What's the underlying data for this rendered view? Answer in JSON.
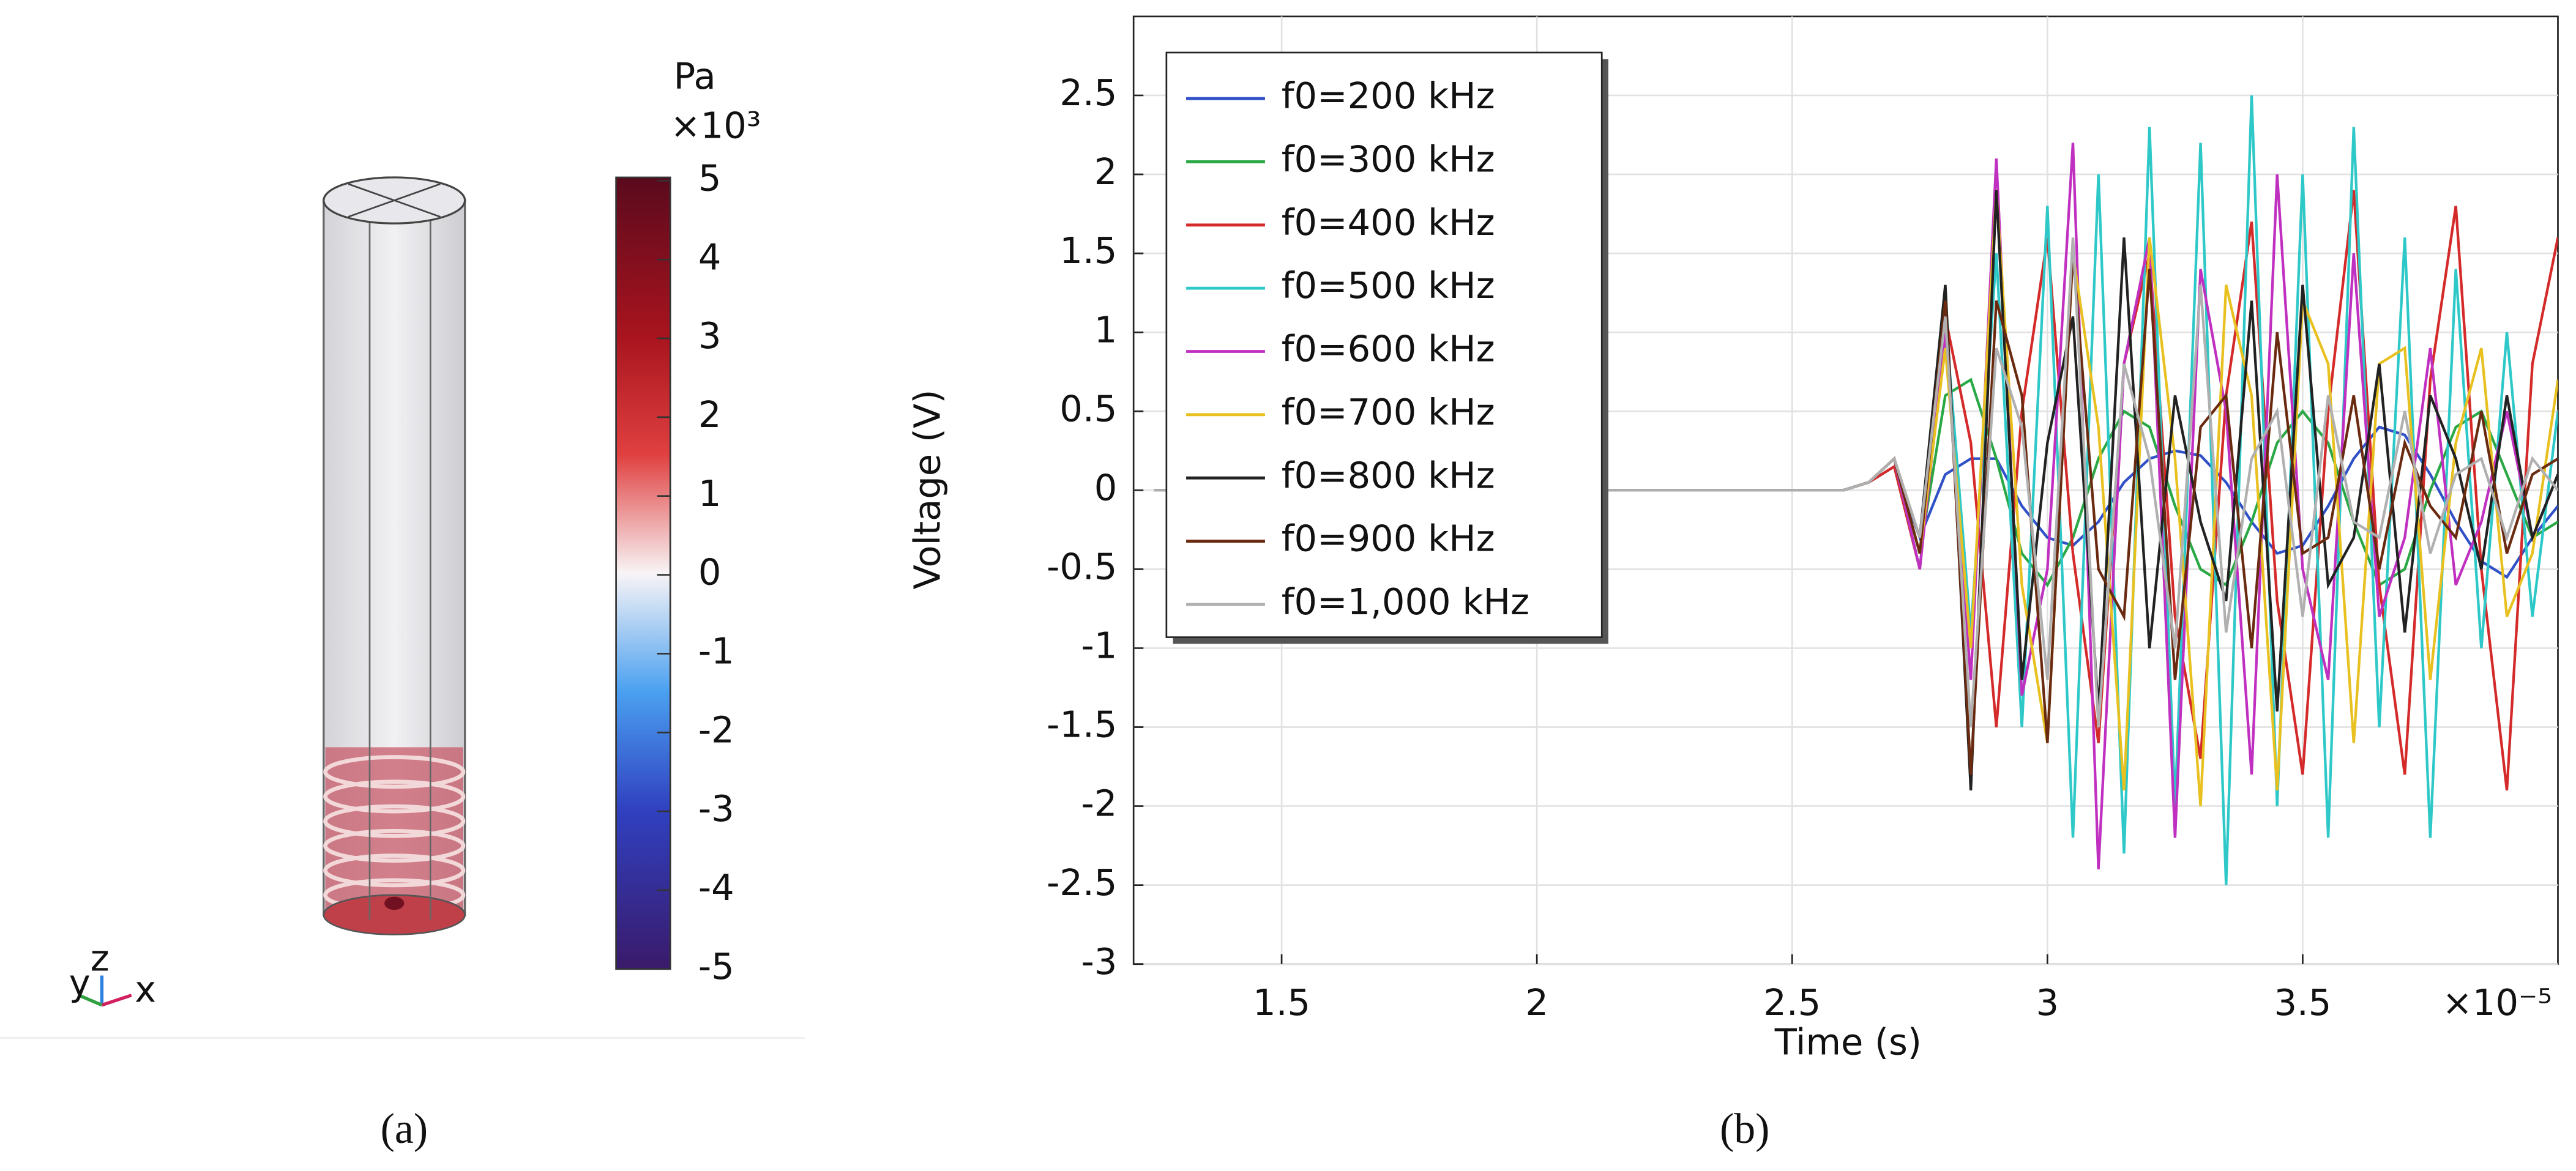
{
  "chart_data": {
    "type": "line",
    "xlabel": "Time (s)",
    "ylabel": "Voltage (V)",
    "x_multiplier": "×10⁻⁵",
    "x": [
      1.25,
      1.5,
      2,
      2.5,
      2.6,
      2.65,
      2.7,
      2.75,
      2.8,
      2.85,
      2.9,
      2.95,
      3,
      3.05,
      3.1,
      3.15,
      3.2,
      3.25,
      3.3,
      3.35,
      3.4,
      3.45,
      3.5,
      3.55,
      3.6,
      3.65,
      3.7,
      3.75,
      3.8,
      3.85,
      3.9,
      3.95,
      4.0
    ],
    "series": [
      {
        "name": "f0=200 kHz",
        "color": "#3050c8",
        "values": [
          0,
          0,
          0,
          0,
          0,
          0.05,
          0.15,
          -0.3,
          0.1,
          0.2,
          0.2,
          -0.1,
          -0.3,
          -0.35,
          -0.2,
          0.05,
          0.2,
          0.25,
          0.22,
          0.05,
          -0.2,
          -0.4,
          -0.35,
          -0.1,
          0.2,
          0.4,
          0.35,
          0.1,
          -0.2,
          -0.45,
          -0.55,
          -0.3,
          -0.1
        ]
      },
      {
        "name": "f0=300 kHz",
        "color": "#2aa845",
        "values": [
          0,
          0,
          0,
          0,
          0,
          0.05,
          0.2,
          -0.4,
          0.6,
          0.7,
          0.2,
          -0.4,
          -0.6,
          -0.3,
          0.2,
          0.5,
          0.4,
          -0.1,
          -0.5,
          -0.6,
          -0.2,
          0.3,
          0.5,
          0.3,
          -0.2,
          -0.6,
          -0.5,
          0,
          0.4,
          0.5,
          0.1,
          -0.3,
          -0.2
        ]
      },
      {
        "name": "f0=400 kHz",
        "color": "#d42a2a",
        "values": [
          0,
          0,
          0,
          0,
          0,
          0.05,
          0.15,
          -0.5,
          1.1,
          0.3,
          -1.5,
          0.5,
          1.6,
          -0.4,
          -1.6,
          0.8,
          1.5,
          -0.8,
          -1.7,
          0.6,
          1.7,
          -0.7,
          -1.8,
          0.5,
          1.9,
          -0.6,
          -1.8,
          0.7,
          1.8,
          -0.5,
          -1.9,
          0.8,
          1.6
        ]
      },
      {
        "name": "f0=500 kHz",
        "color": "#2ec8c8",
        "values": [
          0,
          0,
          0,
          0,
          0,
          0.05,
          0.2,
          -0.5,
          1.1,
          -0.9,
          1.5,
          -1.5,
          1.8,
          -2.2,
          2.0,
          -2.3,
          2.3,
          -2.0,
          2.2,
          -2.5,
          2.5,
          -2.0,
          2.0,
          -2.2,
          2.3,
          -1.5,
          1.6,
          -2.2,
          1.4,
          -1.0,
          1.0,
          -0.8,
          0.5
        ]
      },
      {
        "name": "f0=600 kHz",
        "color": "#c030c0",
        "values": [
          0,
          0,
          0,
          0,
          0,
          0.05,
          0.2,
          -0.5,
          1.0,
          -1.2,
          2.1,
          -1.3,
          -0.5,
          2.2,
          -2.4,
          0.8,
          1.6,
          -2.2,
          1.4,
          0.5,
          -1.8,
          2.0,
          -0.5,
          -1.2,
          1.5,
          -0.8,
          -0.3,
          0.9,
          -0.6,
          -0.2,
          0.5,
          -0.3,
          0.1
        ]
      },
      {
        "name": "f0=700 kHz",
        "color": "#e8c020",
        "values": [
          0,
          0,
          0,
          0,
          0,
          0.05,
          0.2,
          -0.4,
          0.9,
          -1.0,
          1.9,
          -0.6,
          -1.6,
          1.5,
          0.4,
          -1.9,
          1.6,
          0.2,
          -2.0,
          1.3,
          0.6,
          -1.9,
          1.2,
          0.8,
          -1.6,
          0.8,
          0.9,
          -1.2,
          0.3,
          0.9,
          -0.8,
          -0.4,
          0.7
        ]
      },
      {
        "name": "f0=800 kHz",
        "color": "#222222",
        "values": [
          0,
          0,
          0,
          0,
          0,
          0.05,
          0.2,
          -0.3,
          1.3,
          -1.9,
          1.9,
          -1.2,
          0.3,
          1.1,
          -1.4,
          1.6,
          -1.0,
          0.6,
          -0.2,
          -0.7,
          1.2,
          -1.4,
          1.3,
          -0.6,
          -0.3,
          0.8,
          -0.9,
          0.6,
          0.2,
          -0.5,
          0.6,
          -0.3,
          0.1
        ]
      },
      {
        "name": "f0=900 kHz",
        "color": "#6a2a10",
        "values": [
          0,
          0,
          0,
          0,
          0,
          0.05,
          0.2,
          -0.4,
          1.2,
          -1.8,
          1.2,
          0.6,
          -1.6,
          1.5,
          -0.5,
          -0.8,
          1.4,
          -1.2,
          0.4,
          0.6,
          -1.0,
          1.0,
          -0.4,
          -0.3,
          0.6,
          -0.5,
          0.3,
          -0.1,
          -0.3,
          0.5,
          -0.4,
          0.1,
          0.2
        ]
      },
      {
        "name": "f0=1,000 kHz",
        "color": "#b0b0b0",
        "values": [
          0,
          0,
          0,
          0,
          0,
          0.05,
          0.2,
          -0.3,
          1.1,
          -1.5,
          0.9,
          0.4,
          -1.2,
          1.6,
          -1.5,
          0.8,
          0.2,
          -1.0,
          1.3,
          -0.9,
          0.2,
          0.5,
          -0.8,
          0.6,
          -0.2,
          -0.3,
          0.5,
          -0.4,
          0.1,
          0.2,
          -0.3,
          0.2,
          0.0
        ]
      }
    ],
    "xlim": [
      1.21,
      4.0
    ],
    "xticks": [
      1.5,
      2,
      2.5,
      3,
      3.5
    ],
    "ylim": [
      -3,
      3
    ],
    "yticks": [
      -3,
      -2.5,
      -2,
      -1.5,
      -1,
      -0.5,
      0,
      0.5,
      1,
      1.5,
      2,
      2.5
    ],
    "grid": true,
    "legend": "upper left"
  },
  "panel_a": {
    "colorbar": {
      "unit": "Pa",
      "multiplier": "×10³",
      "ticks": [
        5,
        4,
        3,
        2,
        1,
        0,
        -1,
        -2,
        -3,
        -4,
        -5
      ]
    },
    "axes_triad": {
      "y": "y",
      "z": "z",
      "x": "x"
    }
  },
  "panel_labels": {
    "a": "(a)",
    "b": "(b)"
  }
}
